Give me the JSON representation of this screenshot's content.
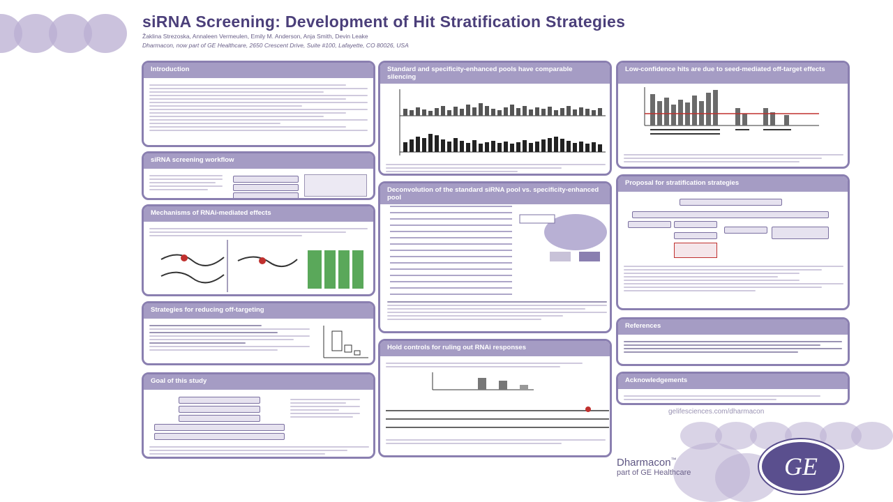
{
  "poster": {
    "title": "siRNA Screening: Development of Hit Stratification Strategies",
    "authors": "Žaklina Strezoska, Annaleen Vermeulen, Emily M. Anderson, Anja Smith, Devin Leake",
    "affiliation": "Dharmacon, now part of GE Healthcare, 2650 Crescent Drive, Suite #100, Lafayette, CO 80026, USA"
  },
  "sections": {
    "intro": "Introduction",
    "workflow": "siRNA screening workflow",
    "mechanisms": "Mechanisms of RNAi-mediated effects",
    "strategies": "Strategies for reducing off-targeting",
    "goal": "Goal of this study",
    "standard": "Standard and specificity-enhanced pools have comparable silencing",
    "deconvolution": "Deconvolution of the standard siRNA pool vs. specificity-enhanced pool",
    "controls": "Hold controls for ruling out RNAi responses",
    "low_conf": "Low-confidence hits are due to seed-mediated off-target effects",
    "proposal": "Proposal for stratification strategies",
    "references": "References",
    "acknowledgements": "Acknowledgements"
  },
  "footer": {
    "url": "gelifesciences.com/dharmacon",
    "brand": "Dharmacon",
    "brand_tm": "™",
    "brand_sub": "part of GE Healthcare",
    "logo_text": "GE"
  },
  "colors": {
    "accent": "#8a7fb0",
    "header_fill": "#a59cc4",
    "title": "#4b3f7a",
    "logo": "#5a4f8e"
  }
}
